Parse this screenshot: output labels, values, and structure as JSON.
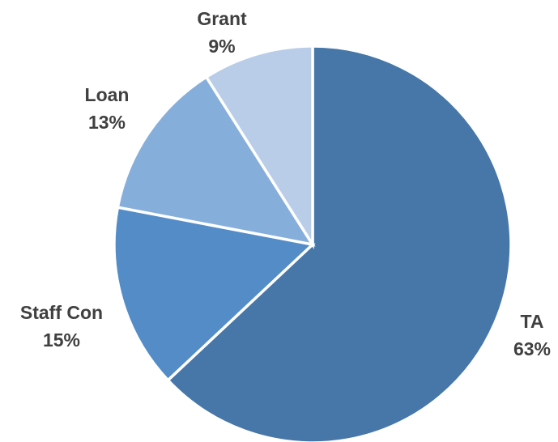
{
  "chart_data": {
    "type": "pie",
    "title": "",
    "start_angle_deg": 0,
    "direction": "clockwise",
    "legend": "none",
    "slices": [
      {
        "label": "TA",
        "value": 63,
        "value_label": "63%",
        "color": "#4677a8"
      },
      {
        "label": "Staff Con",
        "value": 15,
        "value_label": "15%",
        "color": "#538cc6"
      },
      {
        "label": "Loan",
        "value": 13,
        "value_label": "13%",
        "color": "#86aedb"
      },
      {
        "label": "Grant",
        "value": 9,
        "value_label": "9%",
        "color": "#b9cde8"
      }
    ]
  }
}
